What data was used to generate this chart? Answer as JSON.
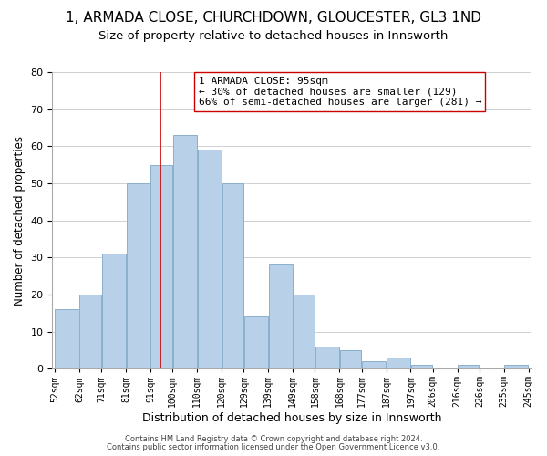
{
  "title": "1, ARMADA CLOSE, CHURCHDOWN, GLOUCESTER, GL3 1ND",
  "subtitle": "Size of property relative to detached houses in Innsworth",
  "xlabel": "Distribution of detached houses by size in Innsworth",
  "ylabel": "Number of detached properties",
  "bar_left_edges": [
    52,
    62,
    71,
    81,
    91,
    100,
    110,
    120,
    129,
    139,
    149,
    158,
    168,
    177,
    187,
    197,
    206,
    216,
    225,
    235
  ],
  "bar_widths": [
    10,
    9,
    10,
    10,
    9,
    10,
    10,
    9,
    10,
    10,
    9,
    10,
    9,
    10,
    10,
    9,
    10,
    9,
    10,
    10
  ],
  "bar_heights": [
    16,
    20,
    31,
    50,
    55,
    63,
    59,
    50,
    14,
    28,
    20,
    6,
    5,
    2,
    3,
    1,
    0,
    1,
    0,
    1
  ],
  "tick_labels": [
    "52sqm",
    "62sqm",
    "71sqm",
    "81sqm",
    "91sqm",
    "100sqm",
    "110sqm",
    "120sqm",
    "129sqm",
    "139sqm",
    "149sqm",
    "158sqm",
    "168sqm",
    "177sqm",
    "187sqm",
    "197sqm",
    "206sqm",
    "216sqm",
    "226sqm",
    "235sqm",
    "245sqm"
  ],
  "bar_color": "#b8d0e8",
  "bar_edge_color": "#8ab0cc",
  "property_line_x": 95,
  "property_line_color": "#cc0000",
  "ylim": [
    0,
    80
  ],
  "yticks": [
    0,
    10,
    20,
    30,
    40,
    50,
    60,
    70,
    80
  ],
  "annotation_line1": "1 ARMADA CLOSE: 95sqm",
  "annotation_line2": "← 30% of detached houses are smaller (129)",
  "annotation_line3": "66% of semi-detached houses are larger (281) →",
  "footer1": "Contains HM Land Registry data © Crown copyright and database right 2024.",
  "footer2": "Contains public sector information licensed under the Open Government Licence v3.0.",
  "background_color": "#ffffff",
  "grid_color": "#d0d0d0",
  "title_fontsize": 11,
  "subtitle_fontsize": 9.5,
  "annotation_fontsize": 8,
  "ylabel_fontsize": 8.5,
  "xlabel_fontsize": 9,
  "tick_fontsize": 7,
  "ytick_fontsize": 8,
  "footer_fontsize": 6
}
